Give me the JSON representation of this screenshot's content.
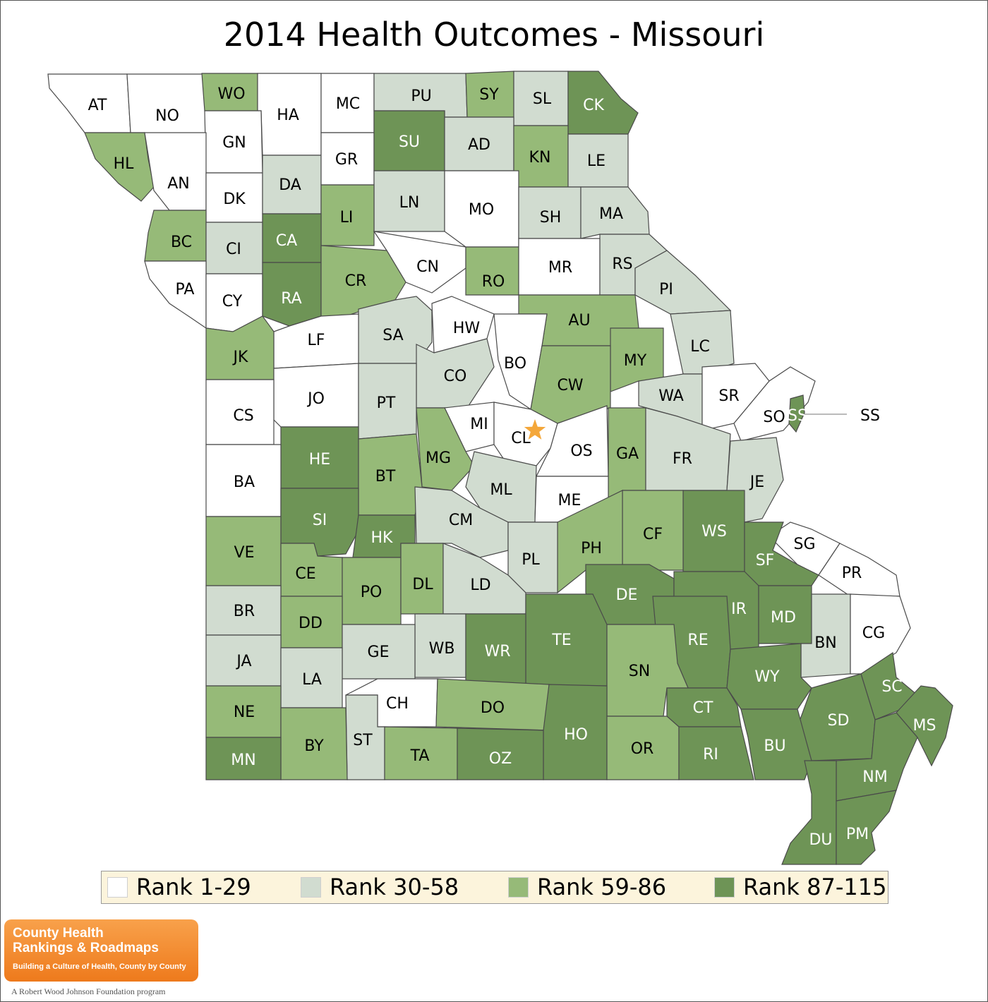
{
  "title": "2014 Health Outcomes - Missouri",
  "colors": {
    "rank1": "#ffffff",
    "rank2": "#d1dcd0",
    "rank3": "#96ba78",
    "rank4": "#6e9456",
    "border": "#4a4a4a",
    "star": "#f4a73a"
  },
  "legend": [
    {
      "label": "Rank 1-29",
      "color": "#ffffff"
    },
    {
      "label": "Rank 30-58",
      "color": "#d1dcd0"
    },
    {
      "label": "Rank 59-86",
      "color": "#96ba78"
    },
    {
      "label": "Rank 87-115",
      "color": "#6e9456"
    }
  ],
  "counties": [
    {
      "code": "AT",
      "rank_group": 1
    },
    {
      "code": "NO",
      "rank_group": 1
    },
    {
      "code": "WO",
      "rank_group": 3
    },
    {
      "code": "HA",
      "rank_group": 1
    },
    {
      "code": "MC",
      "rank_group": 1
    },
    {
      "code": "PU",
      "rank_group": 2
    },
    {
      "code": "SY",
      "rank_group": 3
    },
    {
      "code": "SL",
      "rank_group": 2
    },
    {
      "code": "CK",
      "rank_group": 4
    },
    {
      "code": "GN",
      "rank_group": 1
    },
    {
      "code": "HL",
      "rank_group": 3
    },
    {
      "code": "AN",
      "rank_group": 1
    },
    {
      "code": "DK",
      "rank_group": 1
    },
    {
      "code": "DA",
      "rank_group": 2
    },
    {
      "code": "GR",
      "rank_group": 1
    },
    {
      "code": "SU",
      "rank_group": 4
    },
    {
      "code": "AD",
      "rank_group": 2
    },
    {
      "code": "KN",
      "rank_group": 3
    },
    {
      "code": "LE",
      "rank_group": 2
    },
    {
      "code": "LN",
      "rank_group": 2
    },
    {
      "code": "LI",
      "rank_group": 3
    },
    {
      "code": "MO",
      "rank_group": 1
    },
    {
      "code": "SH",
      "rank_group": 2
    },
    {
      "code": "MA",
      "rank_group": 2
    },
    {
      "code": "BC",
      "rank_group": 3
    },
    {
      "code": "CI",
      "rank_group": 2
    },
    {
      "code": "CA",
      "rank_group": 4
    },
    {
      "code": "CN",
      "rank_group": 1
    },
    {
      "code": "RO",
      "rank_group": 3
    },
    {
      "code": "MR",
      "rank_group": 1
    },
    {
      "code": "RS",
      "rank_group": 2
    },
    {
      "code": "PA",
      "rank_group": 1
    },
    {
      "code": "CY",
      "rank_group": 1
    },
    {
      "code": "RA",
      "rank_group": 4
    },
    {
      "code": "CR",
      "rank_group": 3
    },
    {
      "code": "PI",
      "rank_group": 2
    },
    {
      "code": "AU",
      "rank_group": 3
    },
    {
      "code": "HW",
      "rank_group": 1
    },
    {
      "code": "SA",
      "rank_group": 2
    },
    {
      "code": "LF",
      "rank_group": 1
    },
    {
      "code": "JK",
      "rank_group": 3
    },
    {
      "code": "LC",
      "rank_group": 2
    },
    {
      "code": "BO",
      "rank_group": 1
    },
    {
      "code": "MY",
      "rank_group": 3
    },
    {
      "code": "CO",
      "rank_group": 2
    },
    {
      "code": "CW",
      "rank_group": 3
    },
    {
      "code": "WA",
      "rank_group": 2
    },
    {
      "code": "SR",
      "rank_group": 1
    },
    {
      "code": "JO",
      "rank_group": 1
    },
    {
      "code": "PT",
      "rank_group": 2
    },
    {
      "code": "CS",
      "rank_group": 1
    },
    {
      "code": "SO",
      "rank_group": 1
    },
    {
      "code": "SS",
      "rank_group": 4
    },
    {
      "code": "MI",
      "rank_group": 1
    },
    {
      "code": "CL",
      "rank_group": 1
    },
    {
      "code": "OS",
      "rank_group": 1
    },
    {
      "code": "GA",
      "rank_group": 3
    },
    {
      "code": "FR",
      "rank_group": 2
    },
    {
      "code": "HE",
      "rank_group": 4
    },
    {
      "code": "MG",
      "rank_group": 3
    },
    {
      "code": "BT",
      "rank_group": 3
    },
    {
      "code": "JE",
      "rank_group": 2
    },
    {
      "code": "BA",
      "rank_group": 1
    },
    {
      "code": "ML",
      "rank_group": 2
    },
    {
      "code": "ME",
      "rank_group": 1
    },
    {
      "code": "SI",
      "rank_group": 4
    },
    {
      "code": "CM",
      "rank_group": 2
    },
    {
      "code": "WS",
      "rank_group": 4
    },
    {
      "code": "CF",
      "rank_group": 3
    },
    {
      "code": "HK",
      "rank_group": 4
    },
    {
      "code": "VE",
      "rank_group": 3
    },
    {
      "code": "SG",
      "rank_group": 1
    },
    {
      "code": "PH",
      "rank_group": 3
    },
    {
      "code": "PL",
      "rank_group": 2
    },
    {
      "code": "SF",
      "rank_group": 4
    },
    {
      "code": "CE",
      "rank_group": 3
    },
    {
      "code": "PR",
      "rank_group": 1
    },
    {
      "code": "PO",
      "rank_group": 3
    },
    {
      "code": "DL",
      "rank_group": 3
    },
    {
      "code": "LD",
      "rank_group": 2
    },
    {
      "code": "DE",
      "rank_group": 4
    },
    {
      "code": "BR",
      "rank_group": 2
    },
    {
      "code": "IR",
      "rank_group": 4
    },
    {
      "code": "MD",
      "rank_group": 4
    },
    {
      "code": "DD",
      "rank_group": 3
    },
    {
      "code": "TE",
      "rank_group": 4
    },
    {
      "code": "RE",
      "rank_group": 4
    },
    {
      "code": "BN",
      "rank_group": 2
    },
    {
      "code": "CG",
      "rank_group": 1
    },
    {
      "code": "WB",
      "rank_group": 2
    },
    {
      "code": "WR",
      "rank_group": 4
    },
    {
      "code": "GE",
      "rank_group": 2
    },
    {
      "code": "JA",
      "rank_group": 2
    },
    {
      "code": "SN",
      "rank_group": 3
    },
    {
      "code": "LA",
      "rank_group": 2
    },
    {
      "code": "WY",
      "rank_group": 4
    },
    {
      "code": "SC",
      "rank_group": 4
    },
    {
      "code": "CH",
      "rank_group": 1
    },
    {
      "code": "DO",
      "rank_group": 3
    },
    {
      "code": "CT",
      "rank_group": 4
    },
    {
      "code": "NE",
      "rank_group": 3
    },
    {
      "code": "SD",
      "rank_group": 4
    },
    {
      "code": "MS",
      "rank_group": 4
    },
    {
      "code": "HO",
      "rank_group": 4
    },
    {
      "code": "ST",
      "rank_group": 2
    },
    {
      "code": "BY",
      "rank_group": 3
    },
    {
      "code": "BU",
      "rank_group": 4
    },
    {
      "code": "OR",
      "rank_group": 3
    },
    {
      "code": "TA",
      "rank_group": 3
    },
    {
      "code": "OZ",
      "rank_group": 4
    },
    {
      "code": "RI",
      "rank_group": 4
    },
    {
      "code": "MN",
      "rank_group": 4
    },
    {
      "code": "NM",
      "rank_group": 4
    },
    {
      "code": "DU",
      "rank_group": 4
    },
    {
      "code": "PM",
      "rank_group": 4
    }
  ],
  "logo": {
    "line1": "County Health",
    "line2": "Rankings & Roadmaps",
    "line3": "Building a Culture of Health, County by County"
  },
  "footer": "A Robert Wood Johnson Foundation program"
}
